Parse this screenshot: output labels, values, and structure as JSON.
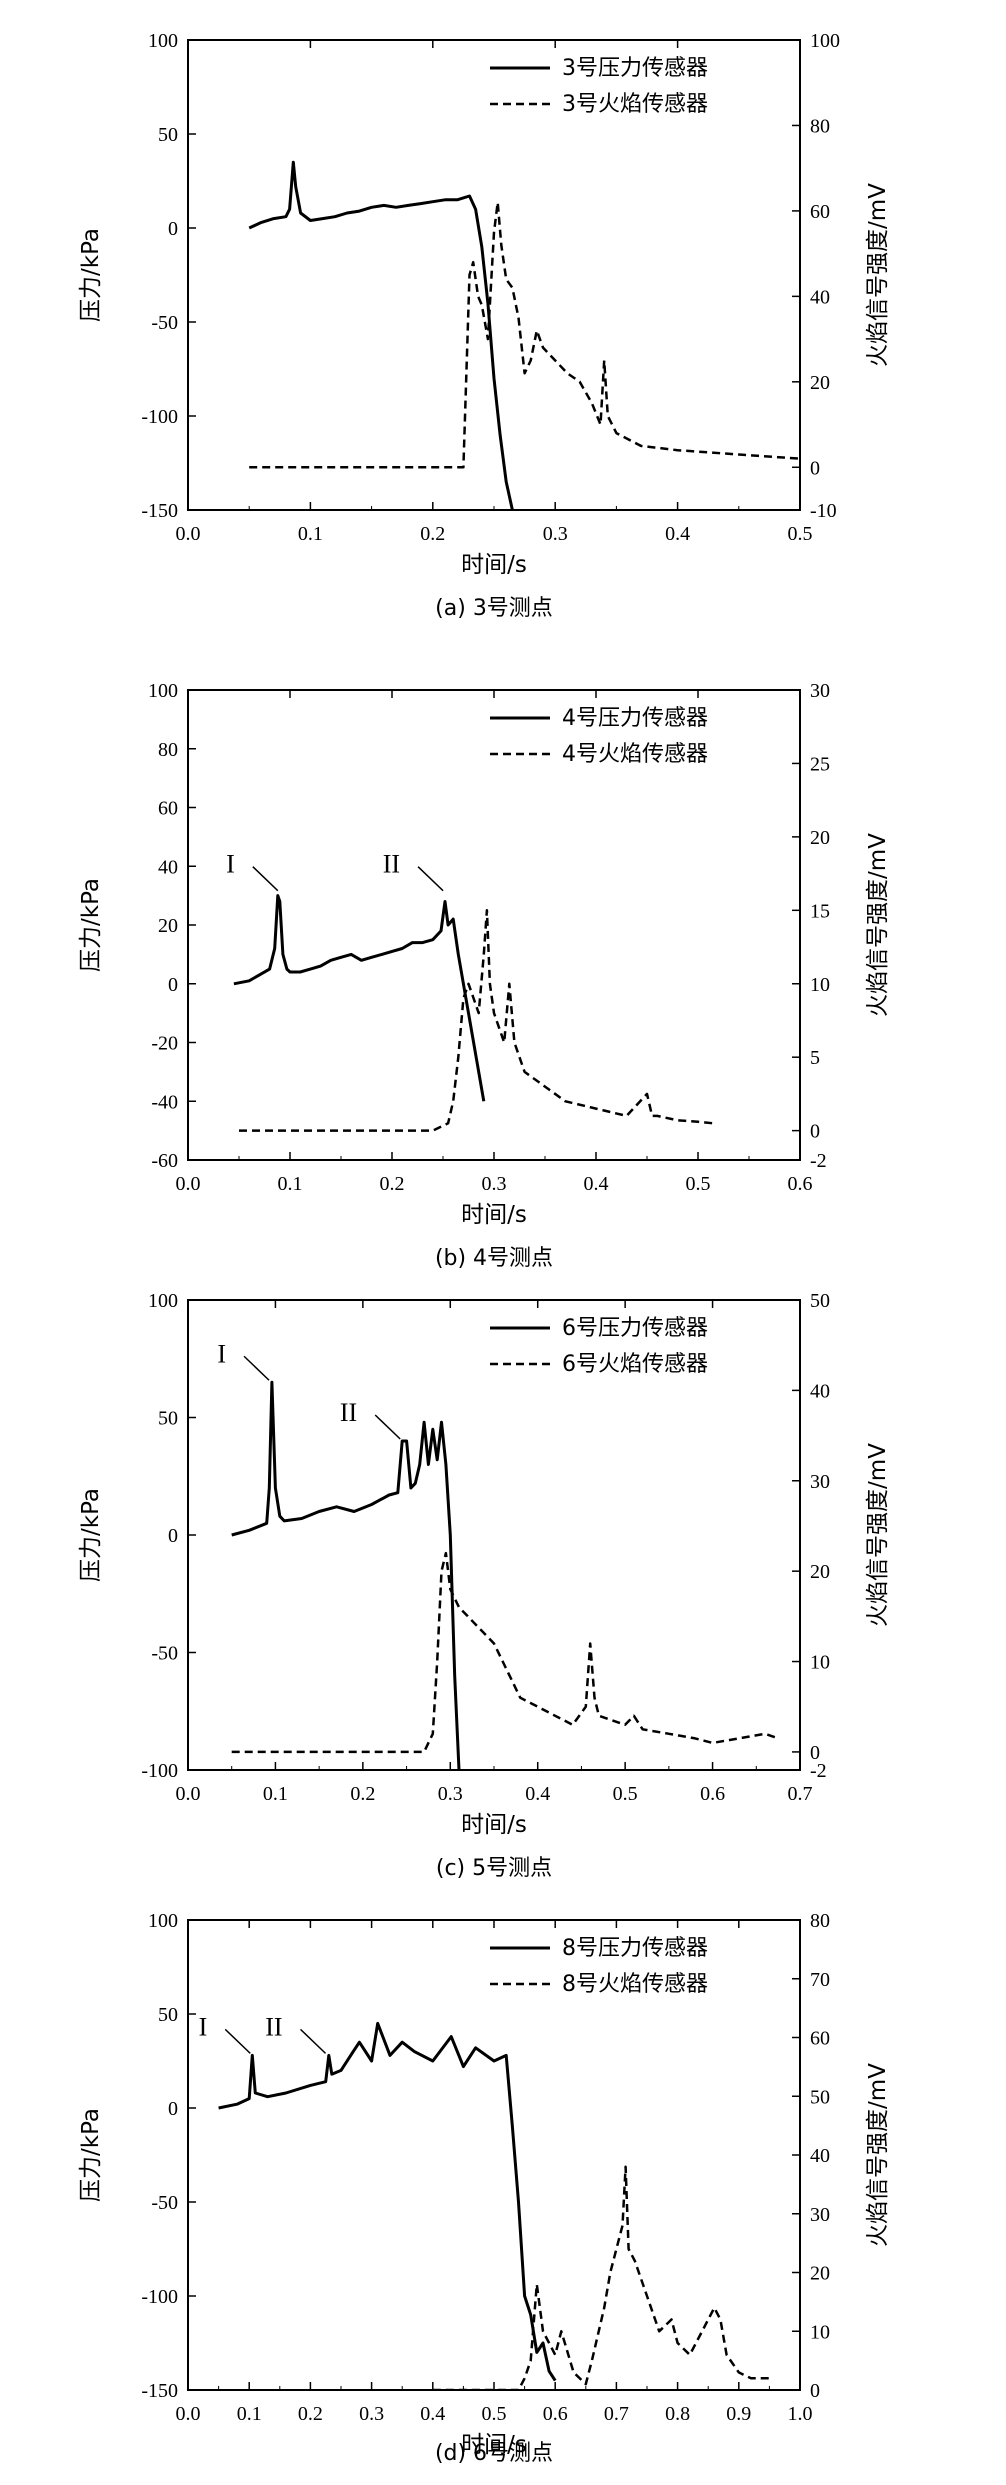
{
  "chart_data": [
    {
      "type": "line",
      "caption": "(a) 3号测点",
      "xlabel": "时间/s",
      "ylabel": "压力/kPa",
      "y2label": "火焰信号强度/mV",
      "xlim": [
        0.0,
        0.5
      ],
      "ylim": [
        -150,
        100
      ],
      "y2lim": [
        -10,
        100
      ],
      "xticks": [
        "0.0",
        "0.1",
        "0.2",
        "0.3",
        "0.4",
        "0.5"
      ],
      "yticks": [
        "-150",
        "-100",
        "-50",
        "0",
        "50",
        "100"
      ],
      "y2ticks": [
        "-10",
        "0",
        "20",
        "40",
        "60",
        "80",
        "100"
      ],
      "legend_position": "top-right",
      "annotations": [],
      "series": [
        {
          "name": "3号压力传感器",
          "axis": "left",
          "style": "solid",
          "x": [
            0.05,
            0.06,
            0.07,
            0.08,
            0.083,
            0.086,
            0.088,
            0.092,
            0.1,
            0.11,
            0.12,
            0.13,
            0.14,
            0.15,
            0.16,
            0.17,
            0.18,
            0.19,
            0.2,
            0.21,
            0.22,
            0.23,
            0.235,
            0.24,
            0.245,
            0.25,
            0.255,
            0.26,
            0.265
          ],
          "y": [
            0,
            3,
            5,
            6,
            10,
            35,
            22,
            8,
            4,
            5,
            6,
            8,
            9,
            11,
            12,
            11,
            12,
            13,
            14,
            15,
            15,
            17,
            10,
            -10,
            -40,
            -80,
            -110,
            -135,
            -150
          ]
        },
        {
          "name": "3号火焰传感器",
          "axis": "right",
          "style": "dashed",
          "x": [
            0.05,
            0.1,
            0.15,
            0.2,
            0.225,
            0.23,
            0.233,
            0.237,
            0.24,
            0.245,
            0.25,
            0.253,
            0.256,
            0.26,
            0.265,
            0.27,
            0.275,
            0.28,
            0.285,
            0.29,
            0.3,
            0.31,
            0.32,
            0.33,
            0.337,
            0.34,
            0.343,
            0.35,
            0.37,
            0.4,
            0.45,
            0.5
          ],
          "y": [
            0,
            0,
            0,
            0,
            0,
            45,
            48,
            40,
            38,
            30,
            55,
            62,
            52,
            44,
            42,
            35,
            22,
            25,
            32,
            28,
            25,
            22,
            20,
            15,
            10,
            25,
            12,
            8,
            5,
            4,
            3,
            2
          ]
        }
      ]
    },
    {
      "type": "line",
      "caption": "(b) 4号测点",
      "xlabel": "时间/s",
      "ylabel": "压力/kPa",
      "y2label": "火焰信号强度/mV",
      "xlim": [
        0.0,
        0.6
      ],
      "ylim": [
        -60,
        100
      ],
      "y2lim": [
        -2,
        30
      ],
      "xticks": [
        "0.0",
        "0.1",
        "0.2",
        "0.3",
        "0.4",
        "0.5",
        "0.6"
      ],
      "yticks": [
        "-60",
        "-40",
        "-20",
        "0",
        "20",
        "40",
        "60",
        "80",
        "100"
      ],
      "y2ticks": [
        "-2",
        "0",
        "5",
        "10",
        "15",
        "20",
        "25",
        "30"
      ],
      "legend_position": "top-right",
      "annotations": [
        {
          "text": "I",
          "x": 0.09,
          "y": 31
        },
        {
          "text": "II",
          "x": 0.252,
          "y": 31
        }
      ],
      "series": [
        {
          "name": "4号压力传感器",
          "axis": "left",
          "style": "solid",
          "x": [
            0.045,
            0.06,
            0.07,
            0.08,
            0.085,
            0.088,
            0.09,
            0.093,
            0.097,
            0.1,
            0.11,
            0.12,
            0.13,
            0.14,
            0.15,
            0.16,
            0.17,
            0.18,
            0.19,
            0.2,
            0.21,
            0.22,
            0.23,
            0.24,
            0.248,
            0.252,
            0.255,
            0.26,
            0.265,
            0.27,
            0.275,
            0.28,
            0.285,
            0.29
          ],
          "y": [
            0,
            1,
            3,
            5,
            12,
            30,
            28,
            10,
            5,
            4,
            4,
            5,
            6,
            8,
            9,
            10,
            8,
            9,
            10,
            11,
            12,
            14,
            14,
            15,
            18,
            28,
            20,
            22,
            10,
            0,
            -10,
            -20,
            -30,
            -40
          ]
        },
        {
          "name": "4号火焰传感器",
          "axis": "right",
          "style": "dashed",
          "x": [
            0.05,
            0.1,
            0.15,
            0.2,
            0.24,
            0.255,
            0.26,
            0.265,
            0.27,
            0.275,
            0.28,
            0.285,
            0.29,
            0.293,
            0.296,
            0.3,
            0.305,
            0.31,
            0.315,
            0.32,
            0.33,
            0.35,
            0.37,
            0.4,
            0.43,
            0.45,
            0.455,
            0.46,
            0.48,
            0.5,
            0.515
          ],
          "y": [
            0,
            0,
            0,
            0,
            0,
            0.5,
            2,
            5,
            9,
            10,
            9,
            8,
            12,
            15,
            10,
            8,
            7,
            6,
            10,
            6,
            4,
            3,
            2,
            1.5,
            1,
            2.5,
            1,
            1,
            0.7,
            0.6,
            0.5
          ]
        }
      ]
    },
    {
      "type": "line",
      "caption": "(c) 5号测点",
      "xlabel": "时间/s",
      "ylabel": "压力/kPa",
      "y2label": "火焰信号强度/mV",
      "xlim": [
        0.0,
        0.7
      ],
      "ylim": [
        -100,
        100
      ],
      "y2lim": [
        -2,
        50
      ],
      "xticks": [
        "0.0",
        "0.1",
        "0.2",
        "0.3",
        "0.4",
        "0.5",
        "0.6",
        "0.7"
      ],
      "yticks": [
        "-100",
        "-50",
        "0",
        "50",
        "100"
      ],
      "y2ticks": [
        "-2",
        "0",
        "10",
        "20",
        "30",
        "40",
        "50"
      ],
      "legend_position": "top-right",
      "annotations": [
        {
          "text": "I",
          "x": 0.095,
          "y": 65
        },
        {
          "text": "II",
          "x": 0.245,
          "y": 40
        }
      ],
      "series": [
        {
          "name": "6号压力传感器",
          "axis": "right-hidden-no",
          "axisRef": "left",
          "style": "solid",
          "x": [
            0.05,
            0.07,
            0.09,
            0.093,
            0.096,
            0.1,
            0.105,
            0.11,
            0.13,
            0.15,
            0.17,
            0.19,
            0.21,
            0.23,
            0.24,
            0.245,
            0.25,
            0.255,
            0.26,
            0.265,
            0.27,
            0.275,
            0.28,
            0.285,
            0.29,
            0.295,
            0.3,
            0.305,
            0.31
          ],
          "y": [
            0,
            2,
            5,
            20,
            65,
            20,
            8,
            6,
            7,
            10,
            12,
            10,
            13,
            17,
            18,
            40,
            40,
            20,
            22,
            30,
            48,
            30,
            45,
            32,
            48,
            30,
            0,
            -60,
            -100
          ]
        },
        {
          "name": "6号火焰传感器",
          "axis": "right",
          "style": "dashed",
          "x": [
            0.05,
            0.1,
            0.2,
            0.27,
            0.28,
            0.285,
            0.29,
            0.295,
            0.3,
            0.31,
            0.32,
            0.33,
            0.35,
            0.36,
            0.37,
            0.38,
            0.4,
            0.42,
            0.44,
            0.455,
            0.46,
            0.465,
            0.47,
            0.5,
            0.51,
            0.52,
            0.55,
            0.58,
            0.6,
            0.63,
            0.66,
            0.675
          ],
          "y": [
            0,
            0,
            0,
            0,
            2,
            10,
            20,
            22,
            18,
            16,
            15,
            14,
            12,
            10,
            8,
            6,
            5,
            4,
            3,
            5,
            12,
            6,
            4,
            3,
            4,
            2.5,
            2,
            1.5,
            1,
            1.5,
            2,
            1.5
          ]
        }
      ]
    },
    {
      "type": "line",
      "caption": "(d) 6号测点",
      "xlabel": "时间/s",
      "ylabel": "压力/kPa",
      "y2label": "火焰信号强度/mV",
      "xlim": [
        0.0,
        1.0
      ],
      "ylim": [
        -150,
        100
      ],
      "y2lim": [
        0,
        80
      ],
      "xticks": [
        "0.0",
        "0.1",
        "0.2",
        "0.3",
        "0.4",
        "0.5",
        "0.6",
        "0.7",
        "0.8",
        "0.9",
        "1.0"
      ],
      "yticks": [
        "-150",
        "-100",
        "-50",
        "0",
        "50",
        "100"
      ],
      "y2ticks": [
        "0",
        "10",
        "20",
        "30",
        "40",
        "50",
        "60",
        "70",
        "80"
      ],
      "legend_position": "top-right",
      "annotations": [
        {
          "text": "I",
          "x": 0.105,
          "y": 28
        },
        {
          "text": "II",
          "x": 0.228,
          "y": 28
        }
      ],
      "series": [
        {
          "name": "8号压力传感器",
          "axis": "left",
          "style": "solid",
          "x": [
            0.05,
            0.08,
            0.1,
            0.105,
            0.11,
            0.13,
            0.16,
            0.2,
            0.225,
            0.23,
            0.235,
            0.25,
            0.27,
            0.28,
            0.3,
            0.31,
            0.33,
            0.35,
            0.37,
            0.4,
            0.43,
            0.45,
            0.47,
            0.5,
            0.52,
            0.53,
            0.54,
            0.55,
            0.56,
            0.57,
            0.58,
            0.59,
            0.6
          ],
          "y": [
            0,
            2,
            5,
            28,
            8,
            6,
            8,
            12,
            14,
            28,
            18,
            20,
            30,
            35,
            25,
            45,
            28,
            35,
            30,
            25,
            38,
            22,
            32,
            25,
            28,
            -10,
            -50,
            -100,
            -110,
            -130,
            -125,
            -140,
            -145
          ]
        },
        {
          "name": "8号火焰传感器",
          "axis": "right",
          "style": "dashed",
          "x": [
            0.4,
            0.45,
            0.5,
            0.54,
            0.55,
            0.56,
            0.57,
            0.58,
            0.59,
            0.6,
            0.61,
            0.63,
            0.65,
            0.66,
            0.68,
            0.69,
            0.7,
            0.71,
            0.715,
            0.72,
            0.73,
            0.75,
            0.77,
            0.79,
            0.8,
            0.82,
            0.84,
            0.86,
            0.87,
            0.88,
            0.9,
            0.92,
            0.95
          ],
          "y": [
            0,
            0,
            0,
            0,
            2,
            5,
            18,
            10,
            8,
            6,
            10,
            3,
            1,
            5,
            14,
            20,
            24,
            28,
            38,
            24,
            22,
            16,
            10,
            12,
            8,
            6,
            10,
            14,
            12,
            6,
            3,
            2,
            2
          ]
        }
      ]
    }
  ]
}
